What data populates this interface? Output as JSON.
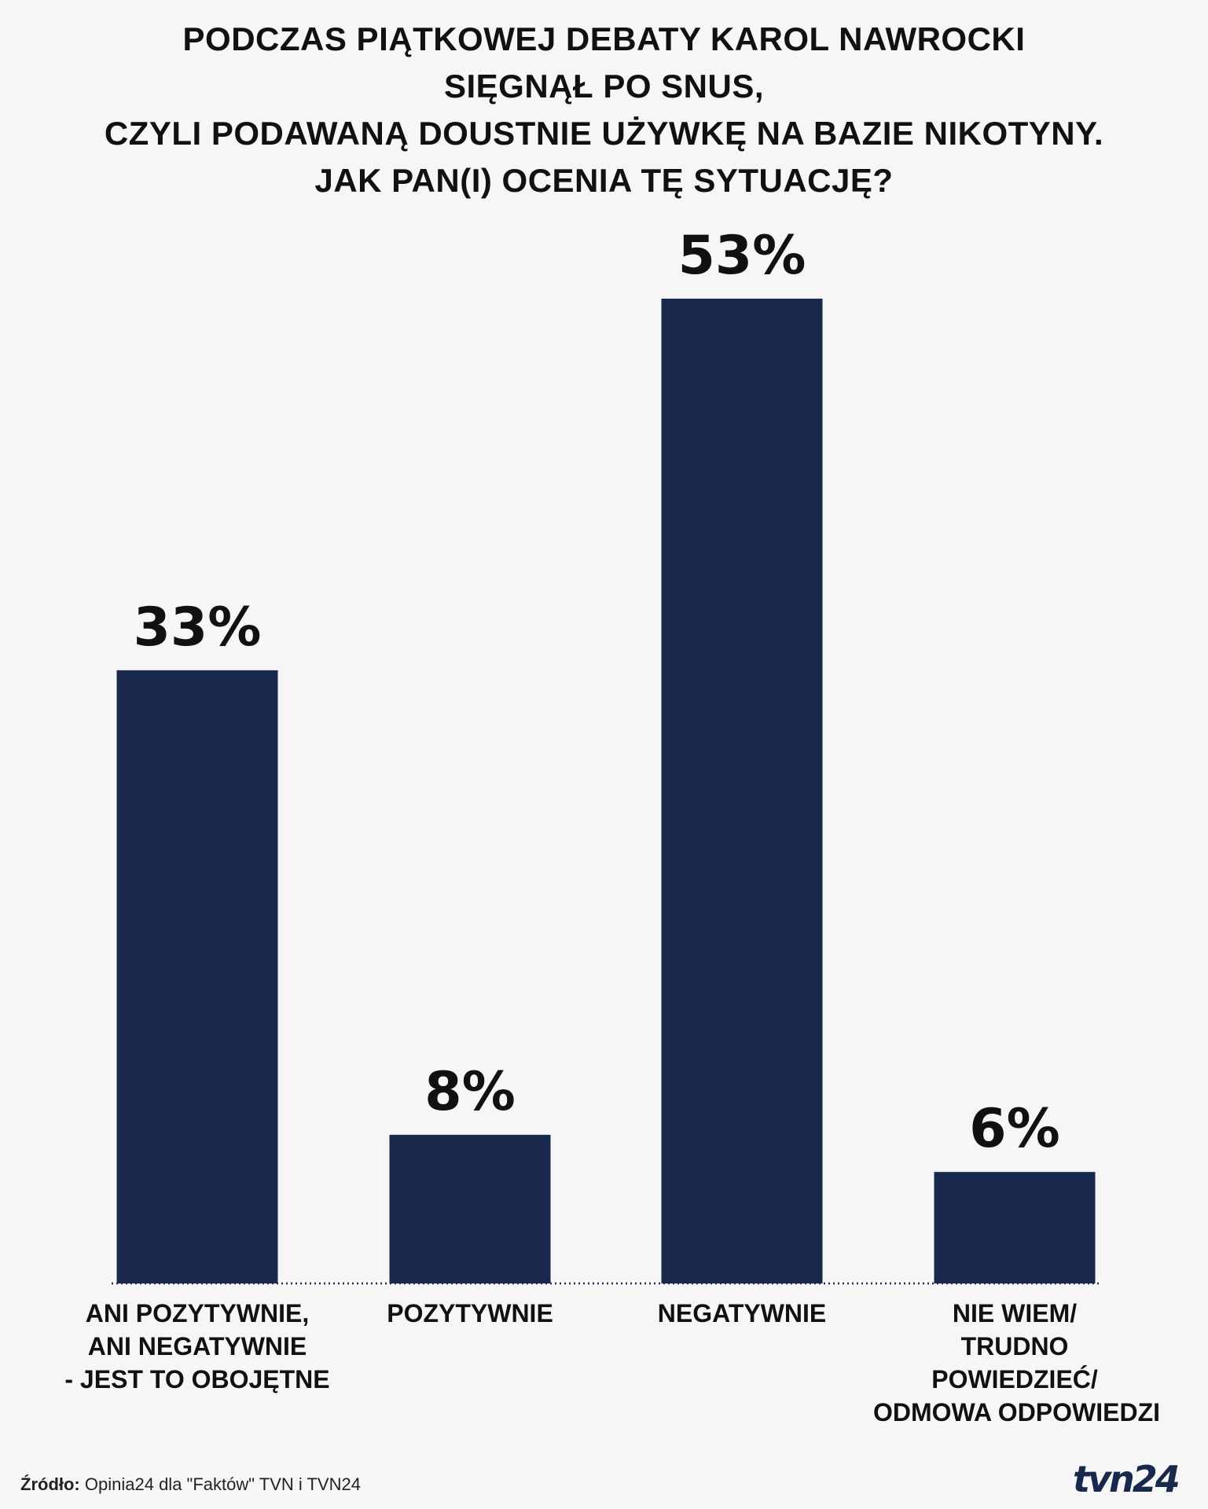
{
  "title_lines": [
    "PODCZAS PIĄTKOWEJ DEBATY KAROL NAWROCKI",
    "SIĘGNĄŁ PO SNUS,",
    "CZYLI PODAWANĄ DOUSTNIE UŻYWKĘ NA BAZIE NIKOTYNY.",
    "JAK PAN(I) OCENIA TĘ SYTUACJĘ?"
  ],
  "chart_data": {
    "type": "bar",
    "title": "PODCZAS PIĄTKOWEJ DEBATY KAROL NAWROCKI SIĘGNĄŁ PO SNUS, CZYLI PODAWANĄ DOUSTNIE UŻYWKĘ NA BAZIE NIKOTYNY. JAK PAN(I) OCENIA TĘ SYTUACJĘ?",
    "categories": [
      "ANI POZYTYWNIE, ANI NEGATYWNIE - JEST TO OBOJĘTNE",
      "POZYTYWNIE",
      "NEGATYWNIE",
      "NIE WIEM/ TRUDNO POWIEDZIEĆ/ ODMOWA ODPOWIEDZI"
    ],
    "category_lines": [
      [
        "ANI POZYTYWNIE,",
        "ANI NEGATYWNIE",
        "- JEST TO OBOJĘTNE"
      ],
      [
        "POZYTYWNIE"
      ],
      [
        "NEGATYWNIE"
      ],
      [
        "NIE WIEM/",
        "TRUDNO",
        "POWIEDZIEĆ/",
        "ODMOWA ODPOWIEDZI"
      ]
    ],
    "values": [
      33,
      8,
      53,
      6
    ],
    "value_labels": [
      "33%",
      "8%",
      "53%",
      "6%"
    ],
    "unit": "%",
    "ylim": [
      0,
      53
    ],
    "grid": false,
    "bar_color": "#19284d"
  },
  "source": {
    "label": "Źródło:",
    "text": "Opinia24 dla \"Faktów\" TVN i TVN24"
  },
  "logo_text": "tvn24"
}
